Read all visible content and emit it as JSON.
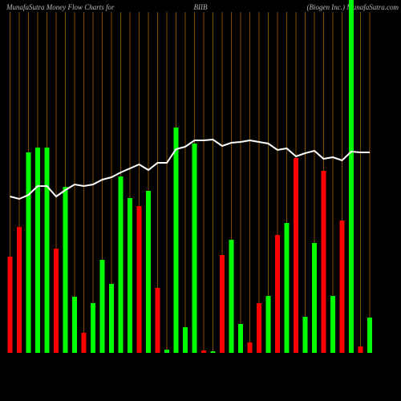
{
  "chart_data": {
    "type": "bar",
    "title": "BIIB",
    "header_left": "MunafaSutra  Money Flow  Charts for",
    "header_right": "(Biogen  Inc.) MunafaSutra.com",
    "categories": [
      null,
      null,
      null,
      null,
      null,
      null,
      null,
      null,
      null,
      null,
      null,
      null,
      null,
      null,
      null,
      null,
      null,
      null,
      null,
      null,
      null,
      null,
      null,
      null,
      null,
      null,
      null,
      null,
      null,
      null,
      null,
      null,
      null,
      null,
      null,
      null,
      null,
      null,
      null,
      null
    ],
    "values": [
      120,
      157,
      250,
      256,
      256,
      130,
      207,
      70,
      25,
      62,
      116,
      86,
      220,
      193,
      183,
      202,
      81,
      4,
      281,
      32,
      261,
      3,
      2,
      122,
      141,
      36,
      13,
      62,
      71,
      147,
      162,
      243,
      45,
      137,
      227,
      71,
      165,
      460,
      8,
      44
    ],
    "colors": [
      "#ff0000",
      "#ff0000",
      "#00ff00",
      "#00ff00",
      "#00ff00",
      "#ff0000",
      "#00ff00",
      "#00ff00",
      "#ff0000",
      "#00ff00",
      "#00ff00",
      "#00ff00",
      "#00ff00",
      "#00ff00",
      "#ff0000",
      "#00ff00",
      "#ff0000",
      "#00ff00",
      "#00ff00",
      "#00ff00",
      "#00ff00",
      "#ff0000",
      "#00ff00",
      "#ff0000",
      "#00ff00",
      "#00ff00",
      "#ff0000",
      "#ff0000",
      "#00ff00",
      "#ff0000",
      "#00ff00",
      "#ff0000",
      "#00ff00",
      "#00ff00",
      "#ff0000",
      "#00ff00",
      "#ff0000",
      "#00ff00",
      "#ff0000",
      "#00ff00"
    ],
    "line": {
      "color": "#ffffff",
      "values": [
        195,
        192,
        197,
        208,
        208,
        195,
        203,
        210,
        208,
        210,
        216,
        219,
        225,
        230,
        235,
        228,
        237,
        237,
        254,
        257,
        265,
        265,
        266,
        258,
        262,
        263,
        265,
        263,
        261,
        253,
        255,
        245,
        249,
        252,
        242,
        244,
        240,
        251,
        250,
        250
      ]
    },
    "ylim": [
      0,
      440
    ],
    "grid_color": "#b86a00"
  }
}
